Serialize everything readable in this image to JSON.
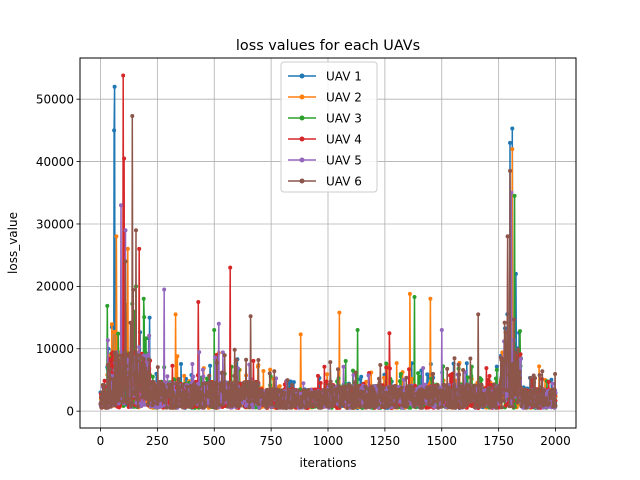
{
  "chart_data": {
    "type": "line",
    "title": "loss values for each UAVs",
    "xlabel": "iterations",
    "ylabel": "loss_value",
    "xlim": [
      -90,
      2090
    ],
    "ylim": [
      -2700,
      56600
    ],
    "x_ticks": [
      0,
      250,
      500,
      750,
      1000,
      1250,
      1500,
      1750,
      2000
    ],
    "y_ticks": [
      0,
      10000,
      20000,
      30000,
      40000,
      50000
    ],
    "x_tick_labels": [
      "0",
      "250",
      "500",
      "750",
      "1000",
      "1250",
      "1500",
      "1750",
      "2000"
    ],
    "y_tick_labels": [
      "0",
      "10000",
      "20000",
      "30000",
      "40000",
      "50000"
    ],
    "grid": true,
    "legend_position": "top-center",
    "markers": "dots",
    "series": [
      {
        "name": "UAV 1",
        "color": "#1f77b4",
        "seed": 11,
        "points": [
          [
            0,
            3000
          ],
          [
            60,
            45000
          ],
          [
            62,
            52000
          ],
          [
            95,
            1000
          ],
          [
            215,
            15000
          ],
          [
            1800,
            43000
          ],
          [
            1810,
            45300
          ],
          [
            1825,
            22000
          ]
        ]
      },
      {
        "name": "UAV 2",
        "color": "#ff7f0e",
        "seed": 23,
        "points": [
          [
            70,
            28000
          ],
          [
            120,
            26000
          ],
          [
            330,
            15500
          ],
          [
            880,
            12300
          ],
          [
            1050,
            15800
          ],
          [
            1360,
            18800
          ],
          [
            1450,
            18000
          ],
          [
            1810,
            42000
          ]
        ]
      },
      {
        "name": "UAV 3",
        "color": "#2ca02c",
        "seed": 37,
        "points": [
          [
            155,
            20000
          ],
          [
            190,
            18000
          ],
          [
            500,
            13000
          ],
          [
            1130,
            13000
          ],
          [
            1380,
            18300
          ],
          [
            1820,
            34500
          ]
        ]
      },
      {
        "name": "UAV 4",
        "color": "#d62728",
        "seed": 41,
        "points": [
          [
            100,
            53800
          ],
          [
            103,
            40500
          ],
          [
            170,
            26000
          ],
          [
            570,
            23000
          ],
          [
            430,
            17500
          ],
          [
            1270,
            12500
          ],
          [
            1790,
            28000
          ]
        ]
      },
      {
        "name": "UAV 5",
        "color": "#9467bd",
        "seed": 53,
        "points": [
          [
            90,
            33000
          ],
          [
            110,
            29000
          ],
          [
            280,
            19500
          ],
          [
            520,
            14000
          ],
          [
            1500,
            13000
          ],
          [
            1805,
            35000
          ]
        ]
      },
      {
        "name": "UAV 6",
        "color": "#8c564b",
        "seed": 67,
        "points": [
          [
            140,
            47300
          ],
          [
            155,
            29000
          ],
          [
            110,
            24000
          ],
          [
            660,
            15200
          ],
          [
            1660,
            15500
          ],
          [
            1800,
            38500
          ],
          [
            1790,
            28000
          ]
        ]
      }
    ]
  }
}
